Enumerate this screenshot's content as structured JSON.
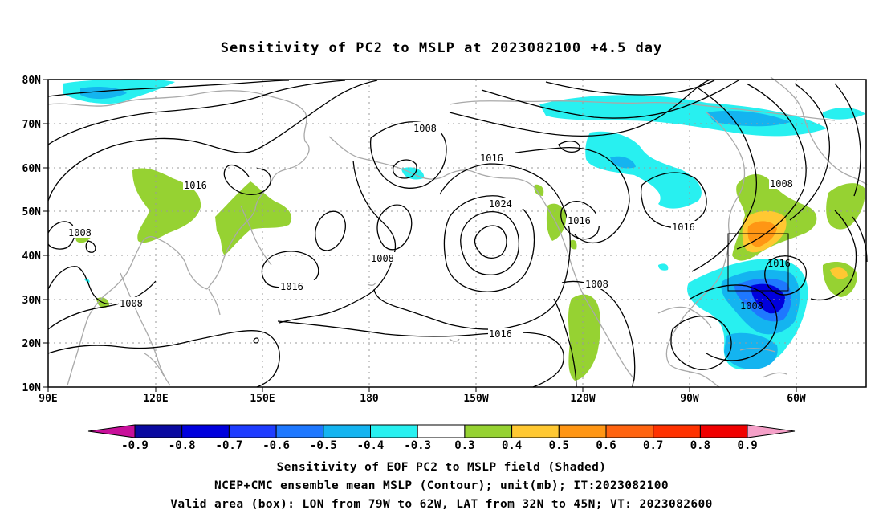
{
  "title": "Sensitivity of PC2 to MSLP at 2023082100 +4.5 day",
  "map": {
    "lat_labels": [
      "80N",
      "70N",
      "60N",
      "50N",
      "40N",
      "30N",
      "20N",
      "10N"
    ],
    "lon_labels": [
      "90E",
      "120E",
      "150E",
      "180",
      "150W",
      "120W",
      "90W",
      "60W"
    ],
    "lon_range": [
      "90E",
      "45W"
    ],
    "lat_range": [
      "10N",
      "80N"
    ],
    "contour_labels": [
      "1008",
      "1016",
      "1024",
      "1008",
      "1016",
      "1008",
      "1016",
      "1016",
      "1008",
      "1016",
      "1016",
      "1008",
      "1008",
      "1016",
      "1008"
    ],
    "box": {
      "lon_from": "79W",
      "lon_to": "62W",
      "lat_from": "32N",
      "lat_to": "45N"
    },
    "colors": {
      "coast": "#a9a9a9",
      "contour": "#000000",
      "grid": "#9a9a9a"
    }
  },
  "colorbar": {
    "labels": [
      "-0.9",
      "-0.8",
      "-0.7",
      "-0.6",
      "-0.5",
      "-0.4",
      "-0.3",
      "0.3",
      "0.4",
      "0.5",
      "0.6",
      "0.7",
      "0.8",
      "0.9"
    ],
    "colors": [
      "#0a0aa0",
      "#0000dd",
      "#1e3cff",
      "#1e78ff",
      "#14b4f0",
      "#28f0f0",
      "#ffffff",
      "#96d232",
      "#ffc832",
      "#ff9614",
      "#ff6410",
      "#ff3200",
      "#f00000"
    ],
    "end_low_color": "#c8109a",
    "end_high_color": "#f5a0c8"
  },
  "captions": {
    "line1": "Sensitivity of EOF PC2 to MSLP field (Shaded)",
    "line2": "NCEP+CMC ensemble mean MSLP (Contour); unit(mb); IT:2023082100",
    "line3": "Valid area (box): LON from 79W to 62W, LAT from 32N to 45N; VT: 2023082600"
  }
}
